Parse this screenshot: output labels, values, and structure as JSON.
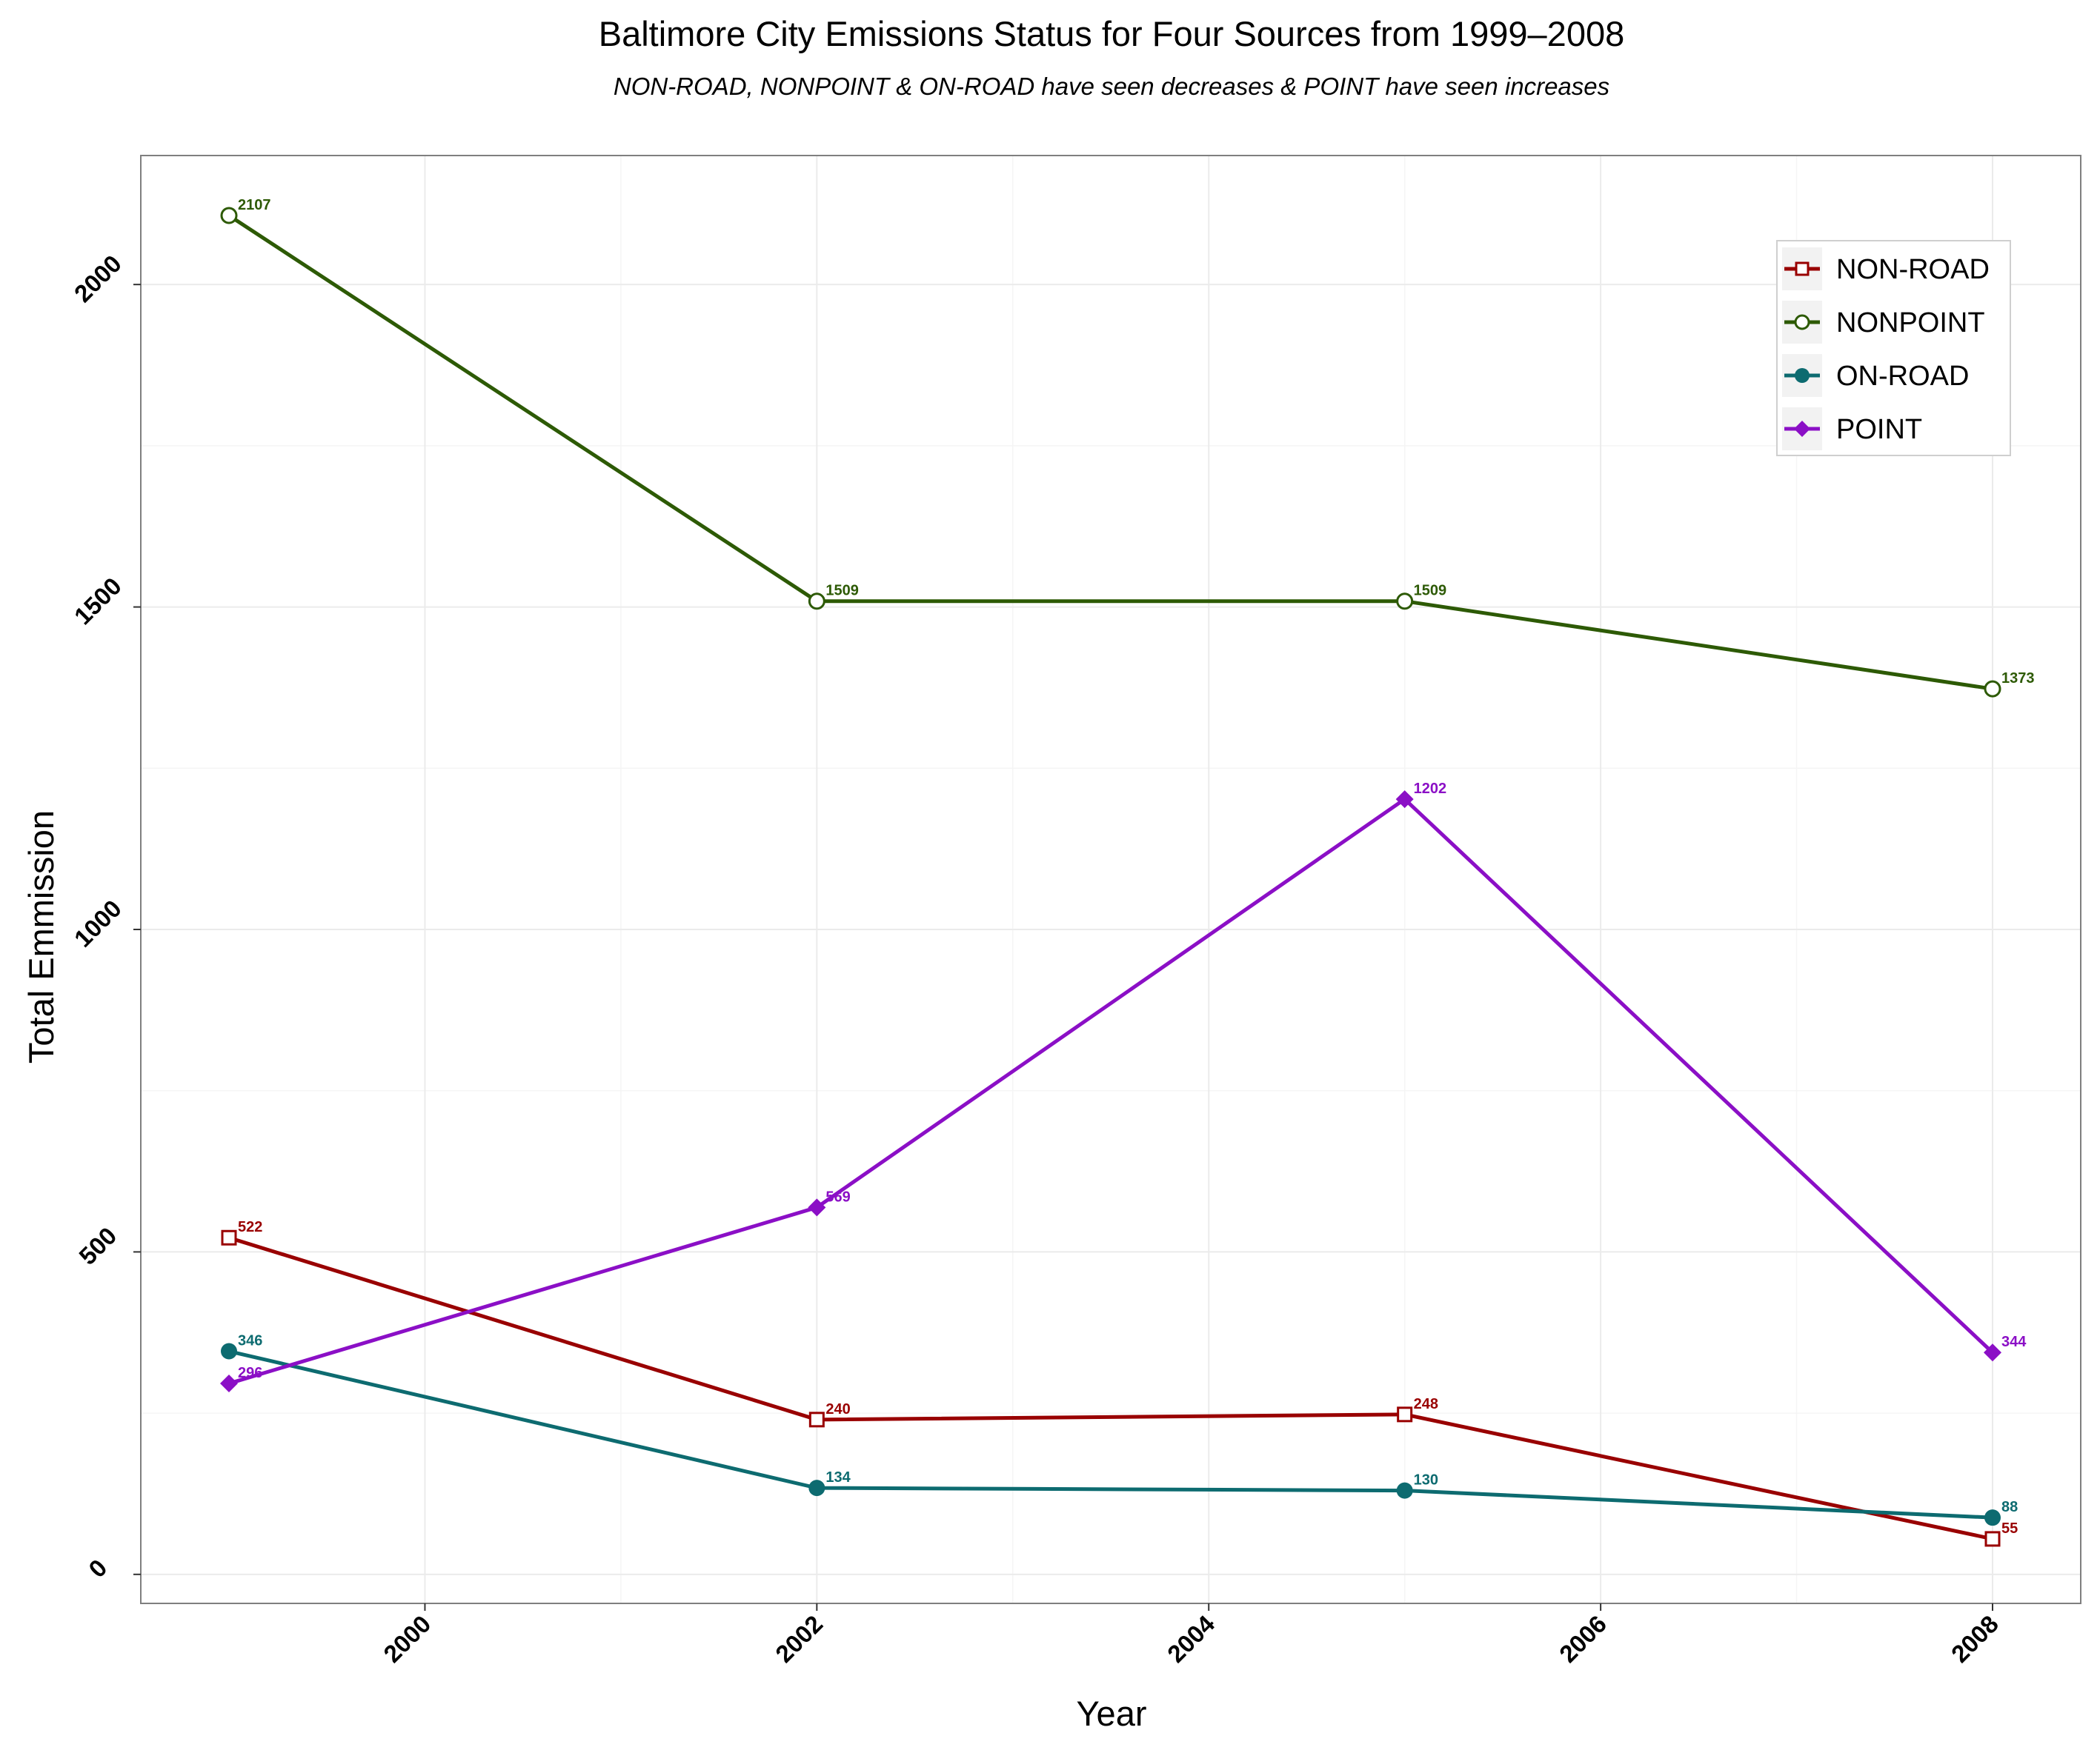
{
  "chart_data": {
    "type": "line",
    "title": "Baltimore City Emissions Status for Four Sources from 1999–2008",
    "subtitle": "NON-ROAD, NONPOINT & ON-ROAD have seen decreases & POINT have seen increases",
    "xlabel": "Year",
    "ylabel": "Total Emmission",
    "x": [
      1999,
      2002,
      2005,
      2008
    ],
    "xlim": [
      1998.55,
      2008.45
    ],
    "ylim": [
      -45,
      2200
    ],
    "xticks": [
      "2000",
      "2002",
      "2004",
      "2006",
      "2008"
    ],
    "yticks": [
      "0",
      "500",
      "1000",
      "1500",
      "2000"
    ],
    "grid": true,
    "legend_position": "top-right",
    "series": [
      {
        "name": "NON-ROAD",
        "color": "#990000",
        "marker": "open-square",
        "values": [
          522,
          240,
          248,
          55
        ],
        "labels": [
          "522",
          "240",
          "248",
          "55"
        ]
      },
      {
        "name": "NONPOINT",
        "color": "#2d5a05",
        "marker": "open-circle",
        "values": [
          2107,
          1509,
          1509,
          1373
        ],
        "labels": [
          "2107",
          "1509",
          "1509",
          "1373"
        ]
      },
      {
        "name": "ON-ROAD",
        "color": "#0d6b70",
        "marker": "filled-circle",
        "values": [
          346,
          134,
          130,
          88
        ],
        "labels": [
          "346",
          "134",
          "130",
          "88"
        ]
      },
      {
        "name": "POINT",
        "color": "#8b0fc6",
        "marker": "filled-diamond",
        "values": [
          296,
          569,
          1202,
          344
        ],
        "labels": [
          "296",
          "569",
          "1202",
          "344"
        ]
      }
    ]
  }
}
